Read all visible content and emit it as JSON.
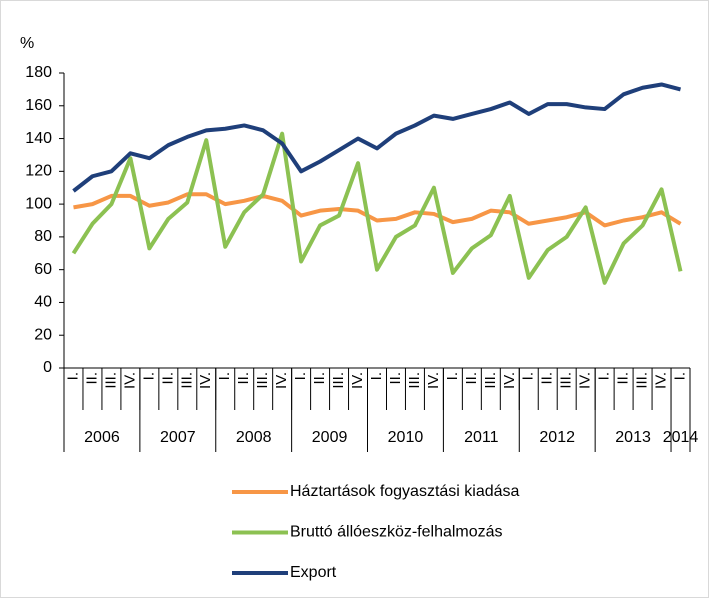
{
  "chart_data": {
    "type": "line",
    "y_label": "%",
    "categories": [
      "I.",
      "II.",
      "III.",
      "IV.",
      "I.",
      "II.",
      "III.",
      "IV.",
      "I.",
      "II.",
      "III.",
      "IV.",
      "I.",
      "II.",
      "III.",
      "IV.",
      "I.",
      "II.",
      "III.",
      "IV.",
      "I.",
      "II.",
      "III.",
      "IV.",
      "I.",
      "II.",
      "III.",
      "IV.",
      "I.",
      "II.",
      "III.",
      "IV.",
      "I."
    ],
    "years": [
      "2006",
      "2007",
      "2008",
      "2009",
      "2010",
      "2011",
      "2012",
      "2013",
      "2014"
    ],
    "ylim": [
      0,
      180
    ],
    "yticks": [
      0,
      20,
      40,
      60,
      80,
      100,
      120,
      140,
      160,
      180
    ],
    "series": [
      {
        "name": "Háztartások fogyasztási kiadása",
        "color": "#f79646",
        "values": [
          98,
          100,
          105,
          105,
          99,
          101,
          106,
          106,
          100,
          102,
          105,
          102,
          93,
          96,
          97,
          96,
          90,
          91,
          95,
          94,
          89,
          91,
          96,
          95,
          88,
          90,
          92,
          95,
          87,
          90,
          92,
          95,
          88
        ]
      },
      {
        "name": "Bruttó állóeszköz-felhalmozás",
        "color": "#8cc152",
        "values": [
          70,
          88,
          100,
          128,
          73,
          91,
          101,
          139,
          74,
          95,
          106,
          143,
          65,
          87,
          93,
          125,
          60,
          80,
          87,
          110,
          58,
          73,
          81,
          105,
          55,
          72,
          80,
          98,
          52,
          76,
          87,
          109,
          59
        ]
      },
      {
        "name": "Export",
        "color": "#1f3f7a",
        "values": [
          108,
          117,
          120,
          131,
          128,
          136,
          141,
          145,
          146,
          148,
          145,
          137,
          120,
          126,
          133,
          140,
          134,
          143,
          148,
          154,
          152,
          155,
          158,
          162,
          155,
          161,
          161,
          159,
          158,
          167,
          171,
          173,
          170
        ]
      }
    ]
  }
}
